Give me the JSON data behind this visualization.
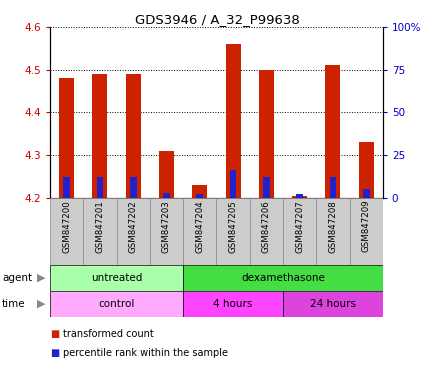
{
  "title": "GDS3946 / A_32_P99638",
  "samples": [
    "GSM847200",
    "GSM847201",
    "GSM847202",
    "GSM847203",
    "GSM847204",
    "GSM847205",
    "GSM847206",
    "GSM847207",
    "GSM847208",
    "GSM847209"
  ],
  "red_values": [
    4.48,
    4.49,
    4.49,
    4.31,
    4.23,
    4.56,
    4.5,
    4.205,
    4.51,
    4.33
  ],
  "blue_values_pct": [
    12,
    12,
    12,
    3,
    2,
    16,
    12,
    2,
    12,
    5
  ],
  "ylim_left": [
    4.2,
    4.6
  ],
  "ylim_right": [
    0,
    100
  ],
  "yticks_left": [
    4.2,
    4.3,
    4.4,
    4.5,
    4.6
  ],
  "yticks_right": [
    0,
    25,
    50,
    75,
    100
  ],
  "ytick_labels_right": [
    "0",
    "25",
    "50",
    "75",
    "100%"
  ],
  "bar_bottom": 4.2,
  "agent_labels": [
    {
      "label": "untreated",
      "start": 0,
      "end": 4,
      "color": "#aaffaa"
    },
    {
      "label": "dexamethasone",
      "start": 4,
      "end": 10,
      "color": "#44dd44"
    }
  ],
  "time_labels": [
    {
      "label": "control",
      "start": 0,
      "end": 4,
      "color": "#ffaaff"
    },
    {
      "label": "4 hours",
      "start": 4,
      "end": 7,
      "color": "#ff44ff"
    },
    {
      "label": "24 hours",
      "start": 7,
      "end": 10,
      "color": "#dd44dd"
    }
  ],
  "red_color": "#cc2200",
  "blue_color": "#2222cc",
  "grid_color": "#000000",
  "left_tick_color": "#cc0000",
  "right_tick_color": "#0000cc",
  "sample_bg": "#cccccc",
  "sample_border": "#888888"
}
